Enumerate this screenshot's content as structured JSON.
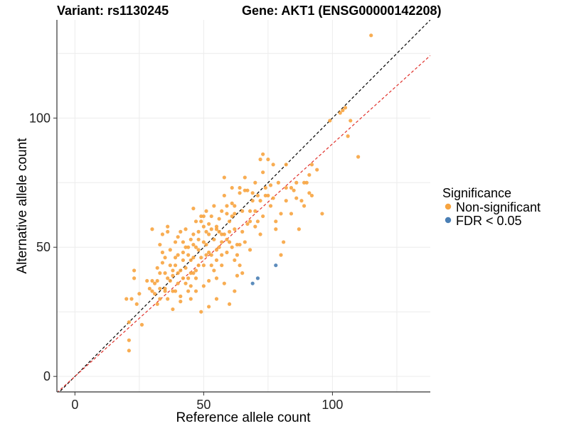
{
  "chart_data": {
    "type": "scatter",
    "title_left": "Variant: rs1130245",
    "title_right": "Gene: AKT1 (ENSG00000142208)",
    "xlabel": "Reference allele count",
    "ylabel": "Alternative allele count",
    "xlim": [
      -7,
      138
    ],
    "ylim": [
      -6,
      138
    ],
    "xticks": [
      0,
      50,
      100
    ],
    "yticks": [
      0,
      50,
      100
    ],
    "grid": true,
    "legend": {
      "title": "Significance",
      "position": "right",
      "entries": [
        {
          "label": "Non-significant",
          "color": "#f7a440"
        },
        {
          "label": "FDR < 0.05",
          "color": "#4a7fb5"
        }
      ]
    },
    "reference_lines": [
      {
        "name": "identity",
        "slope": 1.0,
        "intercept": 0,
        "color": "#000000",
        "style": "dashed"
      },
      {
        "name": "fit",
        "slope": 0.9,
        "intercept": 0,
        "color": "#e0302a",
        "style": "dashed"
      }
    ],
    "series": [
      {
        "name": "Non-significant",
        "color": "#f7a440",
        "points": [
          [
            115,
            132
          ],
          [
            110,
            85
          ],
          [
            107,
            99
          ],
          [
            106,
            93
          ],
          [
            105,
            104
          ],
          [
            104,
            103
          ],
          [
            103,
            102
          ],
          [
            99,
            99
          ],
          [
            96,
            63
          ],
          [
            94,
            80
          ],
          [
            92,
            70
          ],
          [
            92,
            82
          ],
          [
            91,
            71
          ],
          [
            91,
            78
          ],
          [
            90,
            75
          ],
          [
            89,
            75
          ],
          [
            89,
            66
          ],
          [
            88,
            68
          ],
          [
            87,
            57
          ],
          [
            86,
            69
          ],
          [
            86,
            75
          ],
          [
            85,
            72
          ],
          [
            84,
            73
          ],
          [
            84,
            63
          ],
          [
            82,
            82
          ],
          [
            82,
            73
          ],
          [
            82,
            68
          ],
          [
            81,
            52
          ],
          [
            80,
            47
          ],
          [
            80,
            63
          ],
          [
            79,
            75
          ],
          [
            78,
            60
          ],
          [
            78,
            57
          ],
          [
            77,
            69
          ],
          [
            77,
            82
          ],
          [
            76,
            74
          ],
          [
            76,
            66
          ],
          [
            75,
            70
          ],
          [
            75,
            84
          ],
          [
            74,
            70
          ],
          [
            74,
            73
          ],
          [
            73,
            86
          ],
          [
            73,
            79
          ],
          [
            72,
            84
          ],
          [
            72,
            68
          ],
          [
            71,
            70
          ],
          [
            71,
            60
          ],
          [
            70,
            64
          ],
          [
            70,
            75
          ],
          [
            69,
            71
          ],
          [
            69,
            68
          ],
          [
            68,
            49
          ],
          [
            68,
            60
          ],
          [
            67,
            72
          ],
          [
            67,
            59
          ],
          [
            66,
            77
          ],
          [
            66,
            72
          ],
          [
            65,
            64
          ],
          [
            65,
            56
          ],
          [
            64,
            73
          ],
          [
            64,
            71
          ],
          [
            64,
            43
          ],
          [
            63,
            39
          ],
          [
            63,
            51
          ],
          [
            62,
            57
          ],
          [
            62,
            63
          ],
          [
            62,
            45
          ],
          [
            61,
            50
          ],
          [
            61,
            73
          ],
          [
            61,
            67
          ],
          [
            60,
            52
          ],
          [
            60,
            56
          ],
          [
            60,
            60
          ],
          [
            59,
            48
          ],
          [
            59,
            66
          ],
          [
            58,
            77
          ],
          [
            58,
            55
          ],
          [
            58,
            70
          ],
          [
            57,
            47
          ],
          [
            57,
            52
          ],
          [
            57,
            64
          ],
          [
            56,
            50
          ],
          [
            56,
            61
          ],
          [
            56,
            56
          ],
          [
            55,
            38
          ],
          [
            55,
            45
          ],
          [
            55,
            49
          ],
          [
            55,
            58
          ],
          [
            54,
            53
          ],
          [
            54,
            66
          ],
          [
            54,
            41
          ],
          [
            53,
            47
          ],
          [
            53,
            57
          ],
          [
            53,
            43
          ],
          [
            52,
            55
          ],
          [
            52,
            59
          ],
          [
            52,
            37
          ],
          [
            51,
            51
          ],
          [
            51,
            64
          ],
          [
            51,
            56
          ],
          [
            50,
            43
          ],
          [
            50,
            52
          ],
          [
            50,
            58
          ],
          [
            49,
            46
          ],
          [
            49,
            60
          ],
          [
            49,
            62
          ],
          [
            48,
            53
          ],
          [
            48,
            43
          ],
          [
            48,
            56
          ],
          [
            47,
            60
          ],
          [
            47,
            50
          ],
          [
            47,
            38
          ],
          [
            46,
            55
          ],
          [
            46,
            40
          ],
          [
            46,
            65
          ],
          [
            45,
            40
          ],
          [
            45,
            45
          ],
          [
            45,
            53
          ],
          [
            44,
            33
          ],
          [
            44,
            50
          ],
          [
            44,
            47
          ],
          [
            43,
            36
          ],
          [
            43,
            42
          ],
          [
            43,
            57
          ],
          [
            42,
            45
          ],
          [
            42,
            52
          ],
          [
            42,
            48
          ],
          [
            41,
            56
          ],
          [
            41,
            31
          ],
          [
            41,
            41
          ],
          [
            40,
            36
          ],
          [
            40,
            47
          ],
          [
            40,
            54
          ],
          [
            39,
            43
          ],
          [
            39,
            46
          ],
          [
            39,
            52
          ],
          [
            38,
            39
          ],
          [
            38,
            41
          ],
          [
            38,
            33
          ],
          [
            37,
            43
          ],
          [
            37,
            37
          ],
          [
            37,
            49
          ],
          [
            36,
            56
          ],
          [
            36,
            58
          ],
          [
            36,
            30
          ],
          [
            35,
            40
          ],
          [
            35,
            46
          ],
          [
            35,
            34
          ],
          [
            34,
            55
          ],
          [
            34,
            48
          ],
          [
            33,
            40
          ],
          [
            33,
            51
          ],
          [
            33,
            34
          ],
          [
            32,
            37
          ],
          [
            32,
            42
          ],
          [
            31,
            36
          ],
          [
            31,
            32
          ],
          [
            30,
            57
          ],
          [
            30,
            37
          ],
          [
            29,
            34
          ],
          [
            28,
            37
          ],
          [
            26,
            20
          ],
          [
            25,
            32
          ],
          [
            24,
            28
          ],
          [
            23,
            41
          ],
          [
            23,
            38
          ],
          [
            22,
            30
          ],
          [
            21,
            21
          ],
          [
            21,
            14
          ],
          [
            21,
            10
          ],
          [
            20,
            30
          ],
          [
            55,
            57
          ],
          [
            57,
            55
          ],
          [
            59,
            53
          ],
          [
            61,
            62
          ],
          [
            46,
            46
          ],
          [
            52,
            48
          ],
          [
            44,
            38
          ],
          [
            50,
            62
          ],
          [
            53,
            62
          ],
          [
            48,
            49
          ],
          [
            42,
            38
          ],
          [
            39,
            33
          ],
          [
            45,
            35
          ],
          [
            47,
            33
          ],
          [
            58,
            36
          ],
          [
            62,
            33
          ],
          [
            60,
            28
          ],
          [
            55,
            30
          ],
          [
            52,
            27
          ],
          [
            49,
            25
          ],
          [
            41,
            29
          ],
          [
            35,
            33
          ],
          [
            32,
            28
          ],
          [
            38,
            26
          ],
          [
            50,
            35
          ],
          [
            47,
            41
          ],
          [
            45,
            30
          ],
          [
            57,
            43
          ],
          [
            63,
            47
          ],
          [
            65,
            40
          ],
          [
            66,
            52
          ],
          [
            70,
            58
          ],
          [
            72,
            55
          ],
          [
            73,
            62
          ],
          [
            68,
            64
          ],
          [
            64,
            51
          ],
          [
            62,
            66
          ],
          [
            59,
            63
          ],
          [
            51,
            47
          ],
          [
            46,
            51
          ],
          [
            40,
            40
          ],
          [
            36,
            38
          ],
          [
            34,
            44
          ],
          [
            30,
            33
          ],
          [
            33,
            30
          ],
          [
            43,
            50
          ]
        ]
      },
      {
        "name": "FDR < 0.05",
        "color": "#4a7fb5",
        "points": [
          [
            69,
            36
          ],
          [
            71,
            38
          ],
          [
            78,
            43
          ]
        ]
      }
    ]
  }
}
